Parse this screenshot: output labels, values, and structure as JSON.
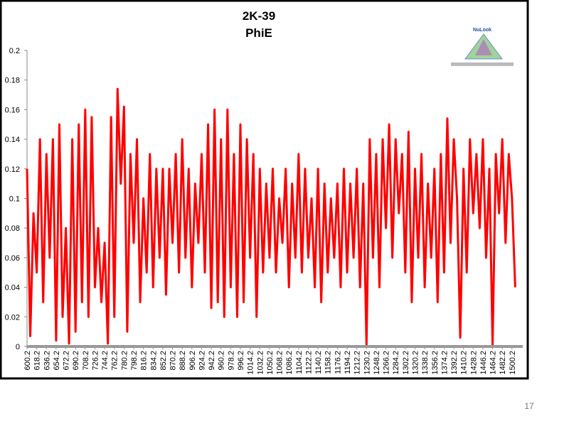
{
  "chart_data": {
    "type": "line",
    "title": "2K-39",
    "subtitle": "PhiE",
    "logo_text": "NuLook",
    "x": [
      600.2,
      606.2,
      612.2,
      618.2,
      624.2,
      630.2,
      636.2,
      642.2,
      648.2,
      654.2,
      660.2,
      666.2,
      672.2,
      678.2,
      684.2,
      690.2,
      696.2,
      702.2,
      708.2,
      714.2,
      720.2,
      726.2,
      732.2,
      738.2,
      744.2,
      750.2,
      756.2,
      762.2,
      768.2,
      774.2,
      780.2,
      786.2,
      792.2,
      798.2,
      804.2,
      810.2,
      816.2,
      822.2,
      828.2,
      834.2,
      840.2,
      846.2,
      852.2,
      858.2,
      864.2,
      870.2,
      876.2,
      882.2,
      888.2,
      894.2,
      900.2,
      906.2,
      912.2,
      918.2,
      924.2,
      930.2,
      936.2,
      942.2,
      948.2,
      954.2,
      960.2,
      966.2,
      972.2,
      978.2,
      984.2,
      990.2,
      996.2,
      1002.2,
      1008.2,
      1014.2,
      1020.2,
      1026.2,
      1032.2,
      1038.2,
      1044.2,
      1050.2,
      1056.2,
      1062.2,
      1068.2,
      1074.2,
      1080.2,
      1086.2,
      1092.2,
      1098.2,
      1104.2,
      1110.2,
      1116.2,
      1122.2,
      1128.2,
      1134.2,
      1140.2,
      1146.2,
      1152.2,
      1158.2,
      1164.2,
      1170.2,
      1176.2,
      1182.2,
      1188.2,
      1194.2,
      1200.2,
      1206.2,
      1212.2,
      1218.2,
      1224.2,
      1230.2,
      1236.2,
      1242.2,
      1248.2,
      1254.2,
      1260.2,
      1266.2,
      1272.2,
      1278.2,
      1284.2,
      1290.2,
      1296.2,
      1302.2,
      1308.2,
      1314.2,
      1320.2,
      1326.2,
      1332.2,
      1338.2,
      1344.2,
      1350.2,
      1356.2,
      1362.2,
      1368.2,
      1374.2,
      1380.2,
      1386.2,
      1392.2,
      1398.2,
      1404.2,
      1410.2,
      1416.2,
      1422.2,
      1428.2,
      1434.2,
      1440.2,
      1446.2,
      1452.2,
      1458.2,
      1464.2,
      1470.2,
      1476.2,
      1482.2,
      1488.2,
      1494.2,
      1500.2,
      1506.2
    ],
    "series": [
      {
        "name": "PhiE",
        "color": "#ff0000",
        "values": [
          0.12,
          0.007,
          0.09,
          0.05,
          0.14,
          0.03,
          0.13,
          0.06,
          0.14,
          0.004,
          0.15,
          0.02,
          0.08,
          0.002,
          0.14,
          0.01,
          0.15,
          0.03,
          0.16,
          0.02,
          0.155,
          0.04,
          0.08,
          0.03,
          0.07,
          0.002,
          0.155,
          0.02,
          0.174,
          0.11,
          0.162,
          0.01,
          0.13,
          0.07,
          0.14,
          0.03,
          0.1,
          0.05,
          0.13,
          0.04,
          0.12,
          0.06,
          0.12,
          0.035,
          0.12,
          0.07,
          0.13,
          0.05,
          0.14,
          0.06,
          0.12,
          0.04,
          0.11,
          0.07,
          0.13,
          0.05,
          0.15,
          0.026,
          0.16,
          0.03,
          0.14,
          0.02,
          0.16,
          0.04,
          0.13,
          0.02,
          0.15,
          0.03,
          0.14,
          0.06,
          0.13,
          0.02,
          0.12,
          0.05,
          0.11,
          0.06,
          0.12,
          0.05,
          0.1,
          0.07,
          0.12,
          0.04,
          0.11,
          0.06,
          0.13,
          0.05,
          0.12,
          0.06,
          0.1,
          0.04,
          0.12,
          0.03,
          0.11,
          0.05,
          0.1,
          0.06,
          0.11,
          0.04,
          0.12,
          0.05,
          0.11,
          0.06,
          0.12,
          0.04,
          0.11,
          0.001,
          0.14,
          0.06,
          0.13,
          0.04,
          0.14,
          0.08,
          0.15,
          0.06,
          0.14,
          0.09,
          0.13,
          0.05,
          0.145,
          0.03,
          0.12,
          0.06,
          0.13,
          0.04,
          0.11,
          0.06,
          0.12,
          0.03,
          0.13,
          0.05,
          0.154,
          0.07,
          0.14,
          0.1,
          0.006,
          0.12,
          0.05,
          0.14,
          0.09,
          0.13,
          0.08,
          0.14,
          0.06,
          0.12,
          0.001,
          0.13,
          0.09,
          0.14,
          0.07,
          0.13,
          0.1,
          0.04
        ]
      }
    ],
    "xlim": [
      600.2,
      1520.2
    ],
    "xticks": [
      600.2,
      618.2,
      636.2,
      654.2,
      672.2,
      690.2,
      708.2,
      726.2,
      744.2,
      762.2,
      780.2,
      798.2,
      816.2,
      834.2,
      852.2,
      870.2,
      888.2,
      906.2,
      924.2,
      942.2,
      960.2,
      978.2,
      996.2,
      1014.2,
      1032.2,
      1050.2,
      1068.2,
      1086.2,
      1104.2,
      1122.2,
      1140.2,
      1158.2,
      1176.2,
      1194.2,
      1212.2,
      1230.2,
      1248.2,
      1266.2,
      1284.2,
      1302.2,
      1320.2,
      1338.2,
      1356.2,
      1374.2,
      1392.2,
      1410.2,
      1428.2,
      1446.2,
      1464.2,
      1482.2,
      1500.2
    ],
    "ylim": [
      0,
      0.2
    ],
    "yticks": [
      0,
      0.02,
      0.04,
      0.06,
      0.08,
      0.1,
      0.12,
      0.14,
      0.16,
      0.18,
      0.2
    ],
    "grid": false
  },
  "slide": {
    "page_number": "17"
  }
}
